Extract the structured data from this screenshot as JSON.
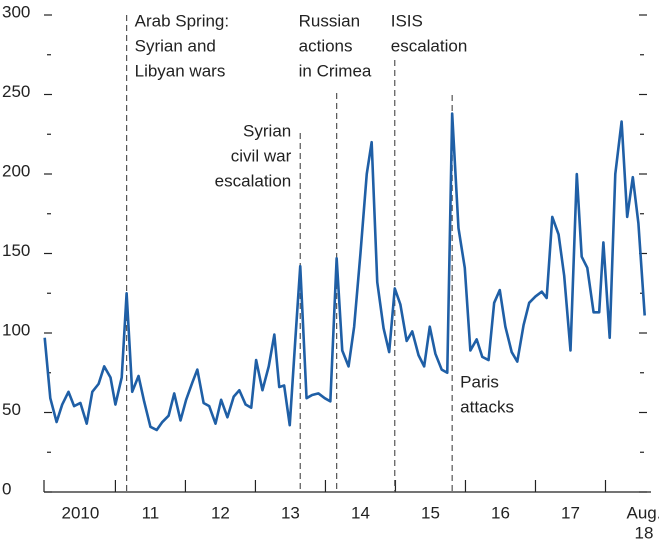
{
  "chart_data": {
    "type": "line",
    "x": [
      2009.99,
      2010.07,
      2010.16,
      2010.24,
      2010.33,
      2010.41,
      2010.5,
      2010.59,
      2010.67,
      2010.76,
      2010.84,
      2010.93,
      2011.0,
      2011.09,
      2011.16,
      2011.24,
      2011.33,
      2011.41,
      2011.5,
      2011.59,
      2011.67,
      2011.76,
      2011.84,
      2011.93,
      2012.01,
      2012.1,
      2012.17,
      2012.26,
      2012.34,
      2012.43,
      2012.51,
      2012.6,
      2012.69,
      2012.77,
      2012.86,
      2012.94,
      2013.01,
      2013.1,
      2013.19,
      2013.27,
      2013.34,
      2013.41,
      2013.49,
      2013.57,
      2013.64,
      2013.73,
      2013.81,
      2013.9,
      2013.99,
      2014.07,
      2014.16,
      2014.24,
      2014.33,
      2014.41,
      2014.5,
      2014.59,
      2014.66,
      2014.74,
      2014.83,
      2014.91,
      2014.99,
      2015.07,
      2015.16,
      2015.24,
      2015.33,
      2015.41,
      2015.49,
      2015.57,
      2015.66,
      2015.74,
      2015.81,
      2015.9,
      2015.99,
      2016.07,
      2016.16,
      2016.24,
      2016.33,
      2016.41,
      2016.49,
      2016.57,
      2016.66,
      2016.74,
      2016.83,
      2016.91,
      2017.0,
      2017.09,
      2017.16,
      2017.24,
      2017.33,
      2017.41,
      2017.5,
      2017.59,
      2017.66,
      2017.74,
      2017.83,
      2017.91,
      2017.97,
      2018.06,
      2018.14,
      2018.23,
      2018.31,
      2018.39,
      2018.47,
      2018.56
    ],
    "series": [
      {
        "color": "#1f5fa6",
        "values": [
          97,
          59,
          44,
          55,
          63,
          54,
          56,
          43,
          63,
          68,
          79,
          72,
          55,
          72,
          125,
          63,
          73,
          57,
          41,
          39,
          44,
          48,
          62,
          45,
          58,
          69,
          77,
          56,
          54,
          43,
          58,
          47,
          60,
          64,
          55,
          53,
          83,
          64,
          79,
          99,
          66,
          67,
          42,
          96,
          142,
          59,
          61,
          62,
          59,
          57,
          147,
          89,
          79,
          104,
          150,
          200,
          220,
          132,
          103,
          88,
          128,
          118,
          95,
          101,
          86,
          79,
          104,
          87,
          77,
          75,
          238,
          166,
          141,
          89,
          96,
          85,
          83,
          119,
          127,
          104,
          88,
          82,
          105,
          119,
          123,
          126,
          122,
          173,
          162,
          136,
          89,
          200,
          148,
          141,
          113,
          113,
          157,
          97,
          200,
          233,
          173,
          198,
          169,
          111
        ]
      }
    ],
    "xlim": [
      2009.98,
      2018.65
    ],
    "xticks": [
      2011,
      2012,
      2013,
      2014,
      2015,
      2016,
      2017,
      2018
    ],
    "xlabels": [
      {
        "value": 2010.5,
        "label": "2010"
      },
      {
        "value": 2011.5,
        "label": "11"
      },
      {
        "value": 2012.5,
        "label": "12"
      },
      {
        "value": 2013.5,
        "label": "13"
      },
      {
        "value": 2014.5,
        "label": "14"
      },
      {
        "value": 2015.5,
        "label": "15"
      },
      {
        "value": 2016.5,
        "label": "16"
      },
      {
        "value": 2017.5,
        "label": "17"
      },
      {
        "value": 2018.55,
        "label": [
          "Aug.",
          "18"
        ]
      }
    ],
    "ylim": [
      0,
      300
    ],
    "yticks": [
      0,
      50,
      100,
      150,
      200,
      250,
      300
    ],
    "yminorticks": [
      25,
      75,
      125,
      175,
      225,
      275
    ],
    "annotations": [
      {
        "x": 2011.16,
        "lines": [
          "Arab Spring:",
          "Syrian and",
          "Libyan wars"
        ]
      },
      {
        "x": 2013.64,
        "lines": [
          "Syrian",
          "civil war",
          "escalation"
        ]
      },
      {
        "x": 2014.16,
        "lines": [
          "Russian",
          "actions",
          "in Crimea"
        ]
      },
      {
        "x": 2014.99,
        "lines": [
          "ISIS",
          "escalation"
        ]
      },
      {
        "x": 2015.81,
        "lines": [
          "Paris",
          "attacks"
        ]
      }
    ]
  }
}
